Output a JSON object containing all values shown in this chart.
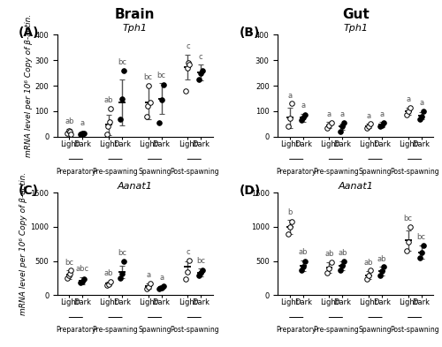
{
  "panels": [
    {
      "label": "A",
      "title": "Tph1",
      "col_title": "Brain",
      "ylabel": "mRNA level per 10⁶ Copy of β-actin.",
      "ylim": [
        0,
        400
      ],
      "yticks": [
        0,
        100,
        200,
        300,
        400
      ],
      "seasons": [
        "Preparatory",
        "Pre-spawning",
        "Spawning",
        "Post-spawning"
      ],
      "light_means": [
        20,
        47,
        135,
        273
      ],
      "light_errors": [
        10,
        40,
        65,
        50
      ],
      "light_points": [
        [
          15,
          25,
          20,
          10
        ],
        [
          10,
          40,
          60,
          110
        ],
        [
          80,
          120,
          200,
          135
        ],
        [
          180,
          270,
          290,
          285
        ]
      ],
      "dark_means": [
        12,
        135,
        150,
        252
      ],
      "dark_errors": [
        8,
        90,
        60,
        30
      ],
      "dark_points": [
        [
          10,
          12,
          15
        ],
        [
          70,
          150,
          260
        ],
        [
          55,
          145,
          205
        ],
        [
          225,
          250,
          260
        ]
      ],
      "light_labels": [
        "ab",
        "ab",
        "bc",
        "c"
      ],
      "dark_labels": [
        "a",
        "bc",
        "bc",
        "c"
      ]
    },
    {
      "label": "B",
      "title": "Tph1",
      "col_title": "Gut",
      "ylabel": "mRNA level per 10⁶ Copy of β-actin.",
      "ylim": [
        0,
        400
      ],
      "yticks": [
        0,
        100,
        200,
        300,
        400
      ],
      "seasons": [
        "Preparatory",
        "Pre-spawning",
        "Spawning",
        "Post-spawning"
      ],
      "light_means": [
        75,
        45,
        42,
        100
      ],
      "light_errors": [
        40,
        12,
        8,
        15
      ],
      "light_points": [
        [
          40,
          72,
          130
        ],
        [
          35,
          45,
          55
        ],
        [
          35,
          42,
          50
        ],
        [
          85,
          100,
          115
        ]
      ],
      "dark_means": [
        75,
        40,
        47,
        83
      ],
      "dark_errors": [
        15,
        12,
        10,
        15
      ],
      "dark_points": [
        [
          65,
          75,
          85
        ],
        [
          20,
          40,
          55
        ],
        [
          40,
          45,
          55
        ],
        [
          70,
          80,
          100
        ]
      ],
      "light_labels": [
        "a",
        "a",
        "a",
        "a"
      ],
      "dark_labels": [
        "a",
        "a",
        "a",
        "a"
      ]
    },
    {
      "label": "C",
      "title": "Aanat1",
      "col_title": "Brain",
      "ylabel": "mRNA level per 10⁶ Copy of β-actin.",
      "ylim": [
        0,
        1500
      ],
      "yticks": [
        0,
        500,
        1000,
        1500
      ],
      "seasons": [
        "Preparatory",
        "Pre-spawning",
        "Spawning",
        "Post-spawning"
      ],
      "light_means": [
        300,
        170,
        130,
        420
      ],
      "light_errors": [
        60,
        30,
        40,
        80
      ],
      "light_points": [
        [
          250,
          290,
          310,
          360
        ],
        [
          140,
          160,
          200
        ],
        [
          90,
          120,
          165
        ],
        [
          240,
          340,
          510
        ]
      ],
      "dark_means": [
        210,
        340,
        115,
        330
      ],
      "dark_errors": [
        50,
        90,
        25,
        55
      ],
      "dark_points": [
        [
          180,
          200,
          240
        ],
        [
          250,
          310,
          500
        ],
        [
          90,
          110,
          130
        ],
        [
          290,
          330,
          370
        ]
      ],
      "light_labels": [
        "bc",
        "ab",
        "a",
        "c"
      ],
      "dark_labels": [
        "abc",
        "bc",
        "a",
        "bc"
      ]
    },
    {
      "label": "D",
      "title": "Aanat1",
      "col_title": "Gut",
      "ylabel": "mRNA level per 10⁶ Copy of β-actin.",
      "ylim": [
        0,
        1500
      ],
      "yticks": [
        0,
        500,
        1000,
        1500
      ],
      "seasons": [
        "Preparatory",
        "Pre-spawning",
        "Spawning",
        "Post-spawning"
      ],
      "light_means": [
        1000,
        400,
        290,
        800
      ],
      "light_errors": [
        100,
        80,
        60,
        150
      ],
      "light_points": [
        [
          900,
          1000,
          1080
        ],
        [
          330,
          390,
          480
        ],
        [
          240,
          280,
          360
        ],
        [
          650,
          780,
          1000
        ]
      ],
      "dark_means": [
        430,
        430,
        350,
        630
      ],
      "dark_errors": [
        80,
        70,
        60,
        100
      ],
      "dark_points": [
        [
          360,
          420,
          500
        ],
        [
          370,
          430,
          490
        ],
        [
          290,
          350,
          410
        ],
        [
          540,
          630,
          730
        ]
      ],
      "light_labels": [
        "b",
        "ab",
        "ab",
        "bc"
      ],
      "dark_labels": [
        "ab",
        "ab",
        "ab",
        "bc"
      ]
    }
  ],
  "col_titles": [
    "Brain",
    "Gut"
  ],
  "marker_size": 4,
  "error_color": "#555555",
  "line_color": "black",
  "label_fontsize": 7,
  "tick_fontsize": 6,
  "panel_label_fontsize": 10,
  "col_title_fontsize": 11,
  "italic_title_fontsize": 8
}
